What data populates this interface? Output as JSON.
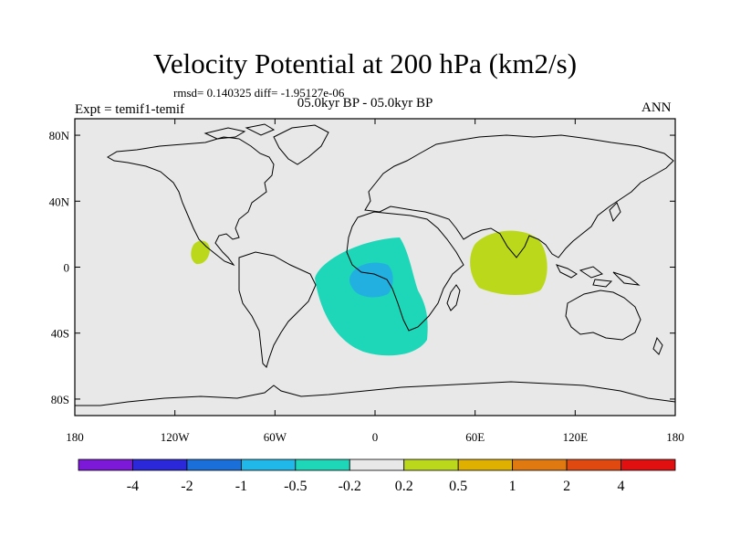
{
  "title": "Velocity Potential at 200 hPa (km2/s)",
  "stats": "rmsd= 0.140325 diff= -1.95127e-06",
  "experiment": "Expt = temif1-temif",
  "period": "05.0kyr BP - 05.0kyr BP",
  "season": "ANN",
  "map": {
    "background_color": "#e8e8e8",
    "lon_ticks": [
      "180",
      "120W",
      "60W",
      "0",
      "60E",
      "120E",
      "180"
    ],
    "lat_ticks": [
      "80N",
      "40N",
      "0",
      "40S",
      "80S"
    ],
    "anomalies": [
      {
        "name": "tropical-atlantic-africa-negative",
        "band": "-0.5 to -0.2",
        "color": "#1ed6b8"
      },
      {
        "name": "gulf-of-guinea-core",
        "band": "-1 to -0.5",
        "color": "#22b0e0"
      },
      {
        "name": "indian-ocean-positive",
        "band": "0.2 to 0.5",
        "color": "#bcd81a"
      },
      {
        "name": "east-pacific-positive",
        "band": "0.2 to 0.5",
        "color": "#bcd81a"
      }
    ]
  },
  "colorbar": {
    "colors": [
      "#7c18d8",
      "#2a28d8",
      "#1a70d8",
      "#20b8e8",
      "#1ed6b8",
      "#e8e8e8",
      "#bcd81a",
      "#e0b000",
      "#e07a10",
      "#e04a10",
      "#e01010"
    ],
    "labels": [
      "-4",
      "-2",
      "-1",
      "-0.5",
      "-0.2",
      "0.2",
      "0.5",
      "1",
      "2",
      "4"
    ]
  }
}
